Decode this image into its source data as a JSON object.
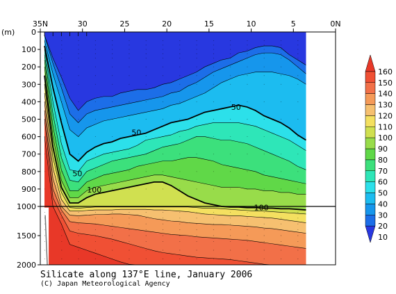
{
  "chart_data": {
    "type": "heatmap",
    "title": "Silicate along 137°E line, January 2006",
    "credit": "(C) Japan Meteorological Agency",
    "xaxis": {
      "range": [
        35,
        0
      ],
      "ticks": [
        35,
        30,
        25,
        20,
        15,
        10,
        5,
        0
      ],
      "tick_labels": [
        "35N",
        "30",
        "25",
        "20",
        "15",
        "10",
        "5",
        "0N"
      ]
    },
    "yaxis": {
      "unit_label": "(m)",
      "upper_range": [
        0,
        1000
      ],
      "lower_range": [
        1000,
        2000
      ],
      "ticks": [
        0,
        100,
        200,
        300,
        400,
        500,
        600,
        700,
        800,
        900,
        1000,
        1500,
        2000
      ],
      "tick_labels": [
        "0",
        "100",
        "200",
        "300",
        "400",
        "500",
        "600",
        "700",
        "800",
        "900",
        "1000",
        "1500",
        "2000"
      ]
    },
    "colorbar": {
      "levels": [
        10,
        20,
        30,
        40,
        50,
        60,
        70,
        80,
        90,
        100,
        110,
        120,
        130,
        140,
        150,
        160
      ],
      "colors": [
        "#2838e0",
        "#1c6ee8",
        "#1696ec",
        "#1cbcf0",
        "#2ce0ea",
        "#2ee6b8",
        "#3ce07c",
        "#60d848",
        "#98dc4a",
        "#d0e050",
        "#f4e060",
        "#f6c070",
        "#f59a58",
        "#f27048",
        "#f05034",
        "#e83828"
      ],
      "tick_labels": [
        "10",
        "20",
        "30",
        "40",
        "50",
        "60",
        "70",
        "80",
        "90",
        "100",
        "110",
        "120",
        "130",
        "140",
        "150",
        "160"
      ]
    },
    "contour_labels": [
      {
        "text": "50",
        "lat": 11.8,
        "depth": 430
      },
      {
        "text": "50",
        "lat": 23.6,
        "depth": 575
      },
      {
        "text": "50",
        "lat": 30.6,
        "depth": 810
      },
      {
        "text": "100",
        "lat": 28.6,
        "depth": 905
      },
      {
        "text": "100",
        "lat": 8.8,
        "depth": 1015
      }
    ],
    "lats": [
      34.5,
      33.5,
      32.5,
      31.5,
      30.5,
      29.5,
      28.5,
      27.5,
      26.5,
      25.5,
      24.5,
      23.5,
      22.5,
      21.5,
      20.5,
      19.5,
      18.5,
      17.5,
      16.5,
      15.5,
      14.5,
      13.5,
      12.5,
      11.5,
      10.5,
      9.5,
      8.5,
      7.5,
      6.5,
      5.5,
      4.5,
      3.5
    ],
    "isopleth_depths": {
      "20": [
        20,
        150,
        260,
        380,
        450,
        400,
        380,
        370,
        370,
        350,
        340,
        330,
        330,
        320,
        300,
        290,
        270,
        250,
        230,
        200,
        180,
        160,
        150,
        120,
        110,
        90,
        80,
        80,
        90,
        130,
        160,
        190
      ],
      "30": [
        20,
        180,
        320,
        470,
        520,
        470,
        450,
        440,
        430,
        420,
        410,
        400,
        390,
        380,
        370,
        350,
        340,
        310,
        290,
        260,
        230,
        210,
        190,
        170,
        150,
        130,
        120,
        120,
        130,
        160,
        200,
        240
      ],
      "40": [
        50,
        240,
        400,
        560,
        600,
        550,
        530,
        510,
        500,
        490,
        480,
        470,
        460,
        450,
        440,
        420,
        410,
        390,
        370,
        350,
        320,
        290,
        270,
        250,
        240,
        230,
        230,
        230,
        240,
        250,
        270,
        300
      ],
      "50": [
        80,
        320,
        520,
        700,
        740,
        690,
        660,
        640,
        630,
        610,
        600,
        590,
        580,
        560,
        540,
        520,
        510,
        500,
        480,
        460,
        450,
        440,
        430,
        420,
        430,
        450,
        480,
        500,
        520,
        550,
        590,
        620
      ],
      "60": [
        100,
        400,
        640,
        790,
        800,
        740,
        720,
        700,
        690,
        680,
        670,
        650,
        620,
        610,
        600,
        590,
        570,
        560,
        540,
        530,
        520,
        520,
        520,
        520,
        530,
        540,
        560,
        580,
        600,
        620,
        650,
        680
      ],
      "70": [
        130,
        470,
        720,
        850,
        860,
        800,
        780,
        760,
        740,
        730,
        720,
        710,
        700,
        680,
        660,
        650,
        640,
        620,
        600,
        600,
        610,
        620,
        620,
        630,
        640,
        660,
        680,
        700,
        720,
        740,
        770,
        790
      ],
      "80": [
        160,
        540,
        790,
        910,
        910,
        860,
        840,
        820,
        810,
        800,
        790,
        770,
        760,
        750,
        740,
        740,
        730,
        720,
        720,
        730,
        740,
        760,
        770,
        780,
        790,
        800,
        820,
        830,
        840,
        850,
        860,
        870
      ],
      "90": [
        200,
        600,
        850,
        950,
        950,
        910,
        890,
        880,
        870,
        860,
        850,
        840,
        830,
        820,
        820,
        830,
        840,
        850,
        860,
        870,
        880,
        890,
        890,
        890,
        900,
        900,
        910,
        910,
        920,
        920,
        930,
        930
      ],
      "100": [
        250,
        660,
        890,
        980,
        980,
        950,
        930,
        920,
        910,
        900,
        890,
        880,
        870,
        860,
        860,
        880,
        910,
        940,
        960,
        980,
        990,
        1000,
        1010,
        1010,
        1020,
        1020,
        1030,
        1030,
        1040,
        1040,
        1050,
        1060
      ],
      "110": [
        300,
        720,
        920,
        1020,
        1030,
        1020,
        1010,
        1010,
        1010,
        1010,
        1010,
        1010,
        1010,
        1010,
        1010,
        1010,
        1010,
        1010,
        1020,
        1030,
        1030,
        1040,
        1050,
        1060,
        1070,
        1080,
        1080,
        1090,
        1100,
        1110,
        1120,
        1130
      ],
      "120": [
        350,
        780,
        960,
        1080,
        1080,
        1070,
        1060,
        1060,
        1060,
        1050,
        1050,
        1050,
        1050,
        1060,
        1060,
        1070,
        1080,
        1090,
        1110,
        1130,
        1140,
        1150,
        1160,
        1160,
        1170,
        1180,
        1190,
        1200,
        1220,
        1240,
        1260,
        1280
      ],
      "130": [
        400,
        840,
        1000,
        1150,
        1160,
        1150,
        1140,
        1140,
        1130,
        1130,
        1140,
        1150,
        1180,
        1210,
        1230,
        1250,
        1260,
        1280,
        1290,
        1300,
        1310,
        1310,
        1320,
        1330,
        1340,
        1350,
        1370,
        1380,
        1400,
        1420,
        1440,
        1460
      ],
      "140": [
        450,
        900,
        1060,
        1260,
        1280,
        1290,
        1300,
        1320,
        1340,
        1360,
        1380,
        1400,
        1420,
        1440,
        1460,
        1480,
        1490,
        1500,
        1520,
        1530,
        1540,
        1550,
        1560,
        1570,
        1580,
        1600,
        1620,
        1640,
        1660,
        1680,
        1700,
        1720
      ],
      "150": [
        500,
        950,
        1150,
        1420,
        1460,
        1480,
        1500,
        1530,
        1560,
        1600,
        1640,
        1680,
        1720,
        1760,
        1790,
        1810,
        1830,
        1850,
        1870,
        1880,
        1890,
        1900,
        1910,
        1930,
        1950,
        1970,
        1990,
        2000,
        2000,
        2000,
        2000,
        2000
      ],
      "155": [
        600,
        1000,
        1300,
        1650,
        1700,
        1750,
        1800,
        1850,
        1900,
        1950,
        1990,
        2000,
        2000,
        2000,
        2000,
        2000,
        2000,
        2000,
        2000,
        2000,
        2000,
        2000,
        2000,
        2000,
        2000,
        2000,
        2000,
        2000,
        2000,
        2000,
        2000,
        2000
      ]
    }
  }
}
